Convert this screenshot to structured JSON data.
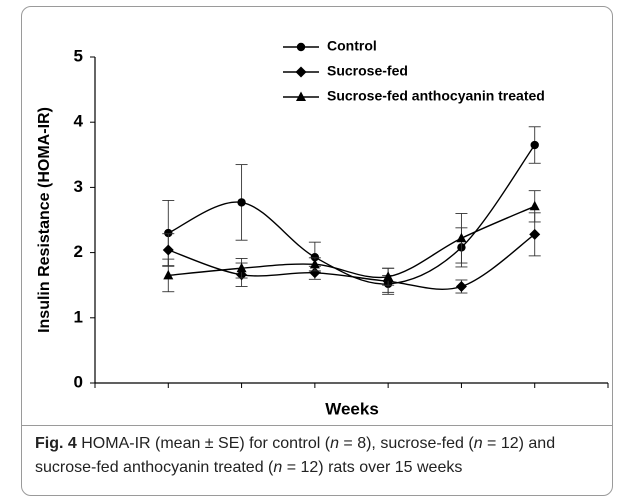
{
  "chart_data": {
    "type": "line",
    "xlabel": "Weeks",
    "ylabel": "Insulin Resistance (HOMA-IR)",
    "categories": [
      null,
      null,
      null,
      null,
      null,
      null
    ],
    "ylim": [
      0,
      5
    ],
    "yticks": [
      0,
      1,
      2,
      3,
      4,
      5
    ],
    "legend": "top",
    "smooth": true,
    "series": [
      {
        "name": "Control",
        "color": "#000000",
        "marker": "circle",
        "values": [
          2.3,
          2.77,
          1.93,
          1.52,
          2.08,
          3.65
        ],
        "errors": [
          0.5,
          0.58,
          0.23,
          0.13,
          0.3,
          0.28
        ]
      },
      {
        "name": "Sucrose-fed",
        "color": "#000000",
        "marker": "diamond",
        "values": [
          2.04,
          1.66,
          1.69,
          1.56,
          1.48,
          2.28
        ],
        "errors": [
          0.25,
          0.18,
          0.1,
          0.2,
          0.1,
          0.33
        ]
      },
      {
        "name": "Sucrose-fed anthocyanin treated",
        "color": "#000000",
        "marker": "triangle",
        "values": [
          1.65,
          1.76,
          1.82,
          1.63,
          2.22,
          2.71
        ],
        "errors": [
          0.25,
          0.15,
          0.1,
          0.13,
          0.38,
          0.24
        ]
      }
    ]
  },
  "caption": {
    "label": "Fig. 4",
    "parts": [
      "HOMA-IR (mean ± SE) for control (",
      "n",
      " = 8), sucrose-fed (",
      "n",
      " = 12) and sucrose-fed anthocyanin treated (",
      "n",
      " = 12) rats over 15 weeks"
    ]
  }
}
